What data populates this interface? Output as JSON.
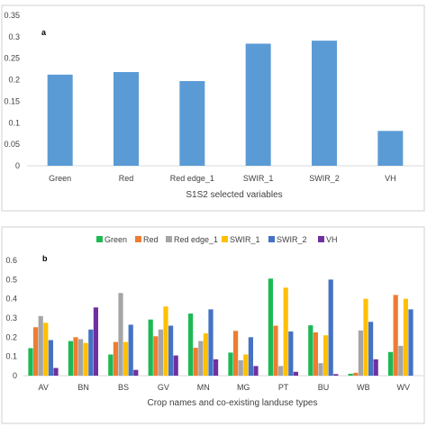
{
  "colors": {
    "panel_a_bar": "#5B9BD5",
    "Green": "#1DB954",
    "Red": "#ED7D31",
    "Red edge_1": "#A5A5A5",
    "SWIR_1": "#FFC000",
    "SWIR_2": "#4472C4",
    "VH": "#7030A0",
    "axis": "#D9D9D9",
    "frame": "#D0D0D0"
  },
  "chart_data": [
    {
      "type": "bar",
      "panel_label": "a",
      "xlabel": "S1S2 selected variables",
      "ylabel": "",
      "ylim": [
        0,
        0.35
      ],
      "yticks": [
        "0",
        "0.05",
        "0.1",
        "0.15",
        "0.2",
        "0.25",
        "0.3",
        "0.35"
      ],
      "categories": [
        "Green",
        "Red",
        "Red edge_1",
        "SWIR_1",
        "SWIR_2",
        "VH"
      ],
      "values": [
        0.212,
        0.218,
        0.197,
        0.284,
        0.291,
        0.081
      ],
      "grid": false
    },
    {
      "type": "bar",
      "panel_label": "b",
      "xlabel": "Crop names and co-existing landuse types",
      "ylabel": "",
      "ylim": [
        0,
        0.6
      ],
      "yticks": [
        "0",
        "0.1",
        "0.2",
        "0.3",
        "0.4",
        "0.5",
        "0.6"
      ],
      "legend_position": "top-center",
      "categories": [
        "AV",
        "BN",
        "BS",
        "GV",
        "MN",
        "MG",
        "PT",
        "BU",
        "WB",
        "WV"
      ],
      "series": [
        {
          "name": "Green",
          "values": [
            0.143,
            0.18,
            0.11,
            0.292,
            0.323,
            0.12,
            0.505,
            0.262,
            0.01,
            0.123
          ]
        },
        {
          "name": "Red",
          "values": [
            0.252,
            0.2,
            0.175,
            0.205,
            0.145,
            0.233,
            0.26,
            0.225,
            0.015,
            0.42
          ]
        },
        {
          "name": "Red edge_1",
          "values": [
            0.31,
            0.19,
            0.43,
            0.24,
            0.18,
            0.08,
            0.05,
            0.065,
            0.235,
            0.155
          ]
        },
        {
          "name": "SWIR_1",
          "values": [
            0.275,
            0.17,
            0.175,
            0.36,
            0.22,
            0.11,
            0.458,
            0.21,
            0.4,
            0.4
          ]
        },
        {
          "name": "SWIR_2",
          "values": [
            0.185,
            0.24,
            0.265,
            0.26,
            0.345,
            0.2,
            0.23,
            0.5,
            0.28,
            0.345
          ]
        },
        {
          "name": "VH",
          "values": [
            0.04,
            0.355,
            0.03,
            0.105,
            0.085,
            0.05,
            0.02,
            0.008,
            0.085,
            0.0
          ]
        }
      ]
    }
  ]
}
